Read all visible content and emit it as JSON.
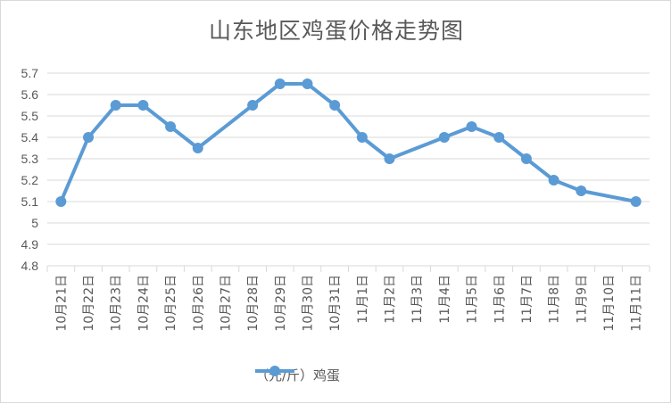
{
  "chart_data": {
    "type": "line",
    "title": "山东地区鸡蛋价格走势图",
    "categories": [
      "10月21日",
      "10月22日",
      "10月23日",
      "10月24日",
      "10月25日",
      "10月26日",
      "10月27日",
      "10月28日",
      "10月29日",
      "10月30日",
      "10月31日",
      "11月1日",
      "11月2日",
      "11月3日",
      "11月4日",
      "11月5日",
      "11月6日",
      "11月7日",
      "11月8日",
      "11月9日",
      "11月10日",
      "11月11日"
    ],
    "series": [
      {
        "name": "（元/斤）鸡蛋",
        "color": "#5b9bd5",
        "values": [
          5.1,
          5.4,
          5.55,
          5.55,
          5.45,
          5.35,
          null,
          5.55,
          5.65,
          5.65,
          5.55,
          5.4,
          5.3,
          null,
          5.4,
          5.45,
          5.4,
          5.3,
          5.2,
          5.15,
          null,
          5.1
        ]
      }
    ],
    "yticks": [
      "4.8",
      "4.9",
      "5",
      "5.1",
      "5.2",
      "5.3",
      "5.4",
      "5.5",
      "5.6",
      "5.7"
    ],
    "ylim": [
      4.8,
      5.7
    ],
    "grid": true,
    "connect_gaps": true,
    "legend": "bottom-center"
  }
}
